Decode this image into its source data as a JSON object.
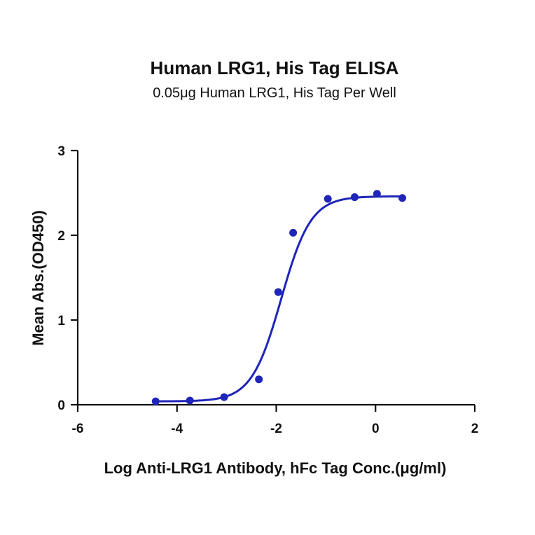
{
  "chart_data": {
    "type": "scatter",
    "title": "Human LRG1, His Tag ELISA",
    "subtitle": "0.05μg Human LRG1, His Tag Per Well",
    "xlabel": "Log Anti-LRG1 Antibody, hFc Tag Conc.(μg/ml)",
    "ylabel": "Mean Abs.(OD450)",
    "xlim": [
      -6,
      2
    ],
    "ylim": [
      0,
      3
    ],
    "xticks": [
      -6,
      -4,
      -2,
      0,
      2
    ],
    "yticks": [
      0,
      1,
      2,
      3
    ],
    "xtick_labels": [
      "-6",
      "-4",
      "-2",
      "0",
      "2"
    ],
    "ytick_labels": [
      "0",
      "1",
      "2",
      "3"
    ],
    "grid": false,
    "series": [
      {
        "color": "#1f25b8",
        "x": [
          -4.43,
          -3.74,
          -3.05,
          -2.35,
          -1.96,
          -1.66,
          -0.96,
          -0.42,
          0.03,
          0.54
        ],
        "y": [
          0.04,
          0.05,
          0.09,
          0.3,
          1.33,
          2.03,
          2.43,
          2.45,
          2.49,
          2.44
        ],
        "fit": {
          "bottom": 0.04,
          "top": 2.46,
          "logEC50": -1.9,
          "hill": 1.45,
          "x_range": [
            -4.43,
            0.54
          ]
        }
      }
    ]
  }
}
